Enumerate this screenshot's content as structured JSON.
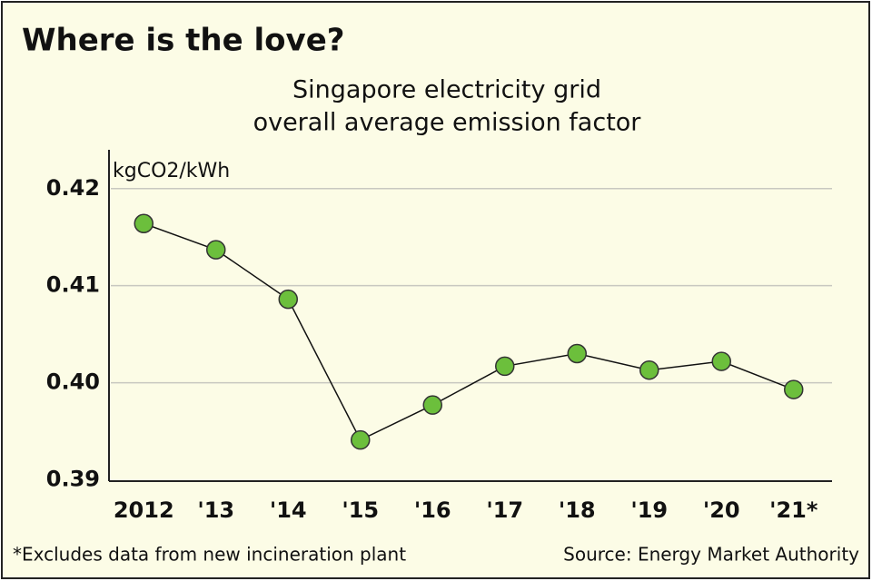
{
  "chart_data": {
    "type": "line",
    "title": "Where is the love?",
    "subtitle": [
      "Singapore electricity grid",
      "overall average emission factor"
    ],
    "y_label": "kgCO2/kWh",
    "categories": [
      "2012",
      "'13",
      "'14",
      "'15",
      "'16",
      "'17",
      "'18",
      "'19",
      "'20",
      "'21*"
    ],
    "values": [
      0.4164,
      0.4137,
      0.4086,
      0.3941,
      0.3977,
      0.4017,
      0.403,
      0.4013,
      0.4022,
      0.3993
    ],
    "color": "#6cbf3c",
    "ylim": [
      0.39,
      0.424
    ],
    "yticks": [
      0.39,
      {
        "value": 0.4,
        "label": "0.40"
      },
      0.41,
      0.42
    ],
    "grid": true,
    "footnote": "*Excludes data from new incineration plant",
    "source": "Source: Energy Market Authority"
  }
}
